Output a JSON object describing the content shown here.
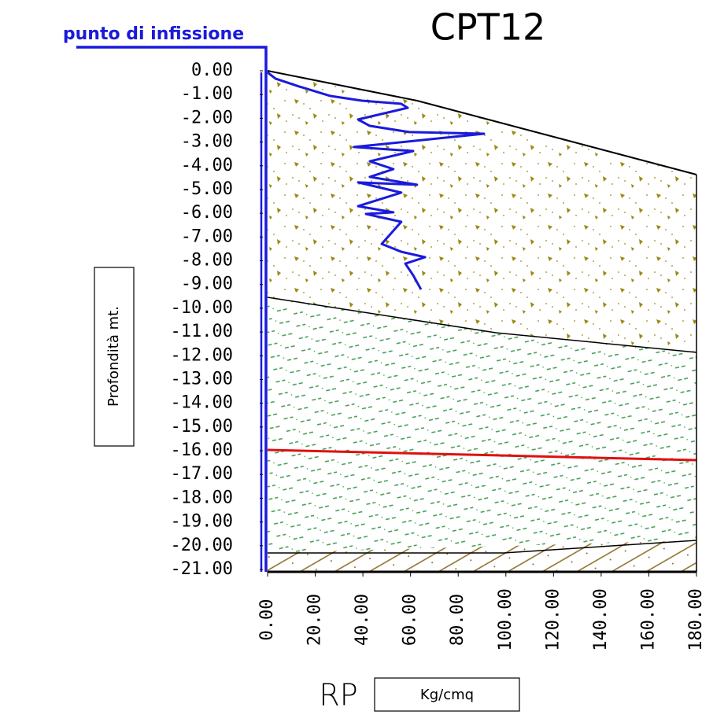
{
  "chart_data": {
    "type": "line",
    "title": "CPT12",
    "annotation": "punto di infissione",
    "ylabel": "Profondità mt.",
    "xlabel": "RP",
    "xunit": "Kg/cmq",
    "xlim": [
      0,
      180
    ],
    "ylim": [
      -21,
      0
    ],
    "xticks": [
      {
        "value": 0,
        "label": "0.00"
      },
      {
        "value": 20,
        "label": "20.00"
      },
      {
        "value": 40,
        "label": "40.00"
      },
      {
        "value": 60,
        "label": "60.00"
      },
      {
        "value": 80,
        "label": "80.00"
      },
      {
        "value": 100,
        "label": "100.00"
      },
      {
        "value": 120,
        "label": "120.00"
      },
      {
        "value": 140,
        "label": "140.00"
      },
      {
        "value": 160,
        "label": "160.00"
      },
      {
        "value": 180,
        "label": "180.00"
      }
    ],
    "yticks": [
      {
        "value": 0,
        "label": "0.00"
      },
      {
        "value": -1,
        "label": "-1.00"
      },
      {
        "value": -2,
        "label": "-2.00"
      },
      {
        "value": -3,
        "label": "-3.00"
      },
      {
        "value": -4,
        "label": "-4.00"
      },
      {
        "value": -5,
        "label": "-5.00"
      },
      {
        "value": -6,
        "label": "-6.00"
      },
      {
        "value": -7,
        "label": "-7.00"
      },
      {
        "value": -8,
        "label": "-8.00"
      },
      {
        "value": -9,
        "label": "-9.00"
      },
      {
        "value": -10,
        "label": "-10.00"
      },
      {
        "value": -11,
        "label": "-11.00"
      },
      {
        "value": -12,
        "label": "-12.00"
      },
      {
        "value": -13,
        "label": "-13.00"
      },
      {
        "value": -14,
        "label": "-14.00"
      },
      {
        "value": -15,
        "label": "-15.00"
      },
      {
        "value": -16,
        "label": "-16.00"
      },
      {
        "value": -17,
        "label": "-17.00"
      },
      {
        "value": -18,
        "label": "-18.00"
      },
      {
        "value": -19,
        "label": "-19.00"
      },
      {
        "value": -20,
        "label": "-20.00"
      },
      {
        "value": -21,
        "label": "-21.00"
      }
    ],
    "series": [
      {
        "color": "#1a1adc",
        "x": [
          0,
          3.3,
          13.2,
          26.4,
          39.6,
          56.1,
          58.8,
          38.0,
          42.9,
          59.4,
          90.8,
          36.3,
          61.1,
          42.9,
          52.8,
          42.9,
          62.7,
          38.0,
          56.1,
          38.0,
          52.8,
          41.3,
          56.1,
          47.9,
          56.1,
          66.1,
          57.8,
          61.1,
          64.4
        ],
        "values": [
          -0.07,
          -0.33,
          -0.66,
          -1.06,
          -1.26,
          -1.39,
          -1.56,
          -2.05,
          -2.32,
          -2.58,
          -2.65,
          -3.21,
          -3.38,
          -3.81,
          -4.14,
          -4.47,
          -4.8,
          -4.7,
          -5.13,
          -5.7,
          -5.96,
          -6.03,
          -6.36,
          -7.29,
          -7.62,
          -7.85,
          -8.12,
          -8.61,
          -9.21
        ]
      }
    ]
  }
}
